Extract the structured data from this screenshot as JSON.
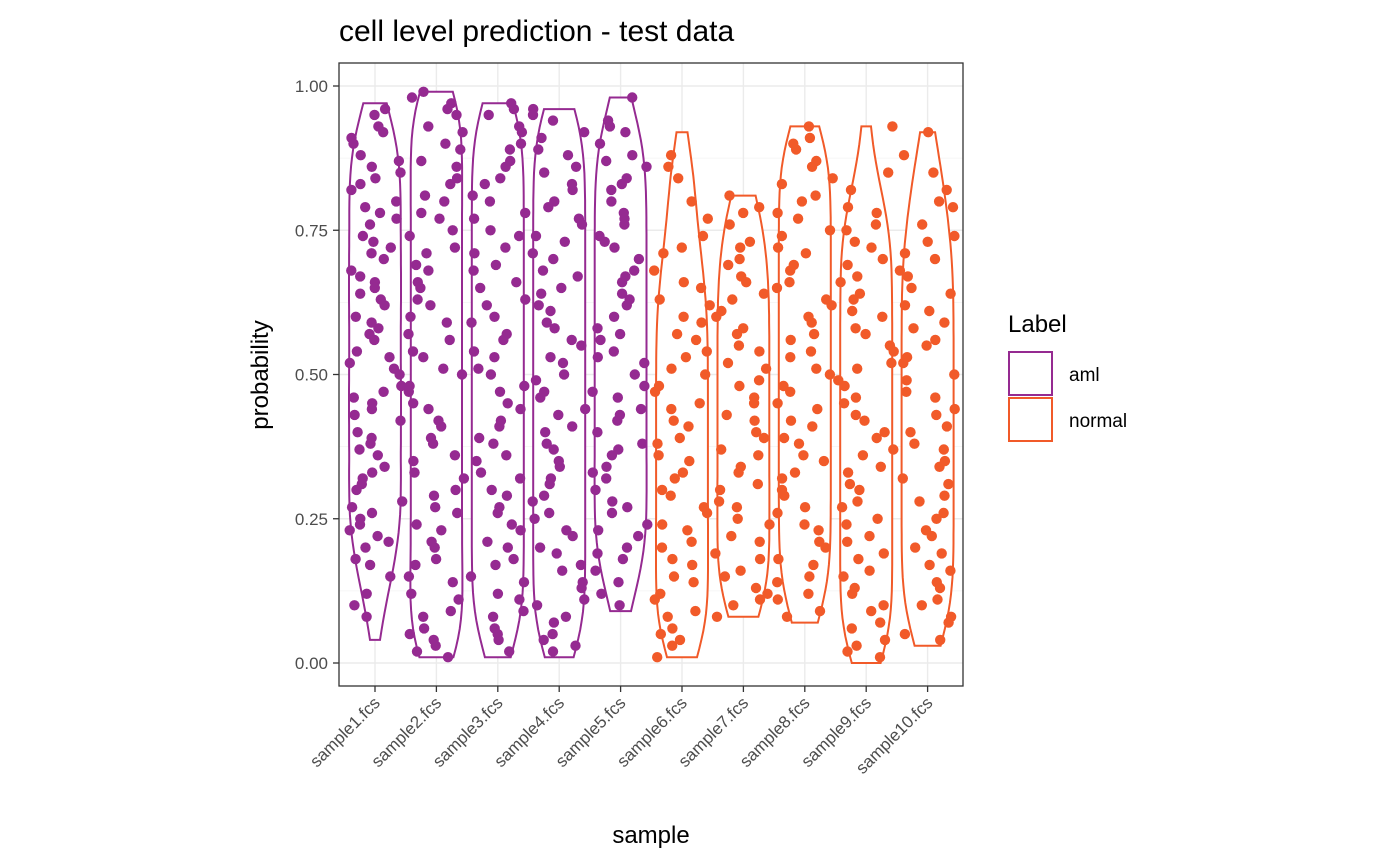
{
  "chart_data": {
    "type": "violin",
    "title": "cell level prediction - test data",
    "xlabel": "sample",
    "ylabel": "probability",
    "ylim": [
      0,
      1
    ],
    "yticks": [
      "0.00",
      "0.25",
      "0.50",
      "0.75",
      "1.00"
    ],
    "ytick_values": [
      0,
      0.25,
      0.5,
      0.75,
      1.0
    ],
    "grid": true,
    "legend": {
      "title": "Label",
      "placement": "right",
      "entries": [
        {
          "label": "aml",
          "color": "#952a91"
        },
        {
          "label": "normal",
          "color": "#f15a29"
        }
      ]
    },
    "categories": [
      "sample1.fcs",
      "sample2.fcs",
      "sample3.fcs",
      "sample4.fcs",
      "sample5.fcs",
      "sample6.fcs",
      "sample7.fcs",
      "sample8.fcs",
      "sample9.fcs",
      "sample10.fcs"
    ],
    "samples": [
      {
        "name": "sample1.fcs",
        "label": "aml",
        "min": 0.04,
        "max": 0.97,
        "points": [
          0.95,
          0.93,
          0.9,
          0.88,
          0.86,
          0.84,
          0.82,
          0.8,
          0.78,
          0.76,
          0.74,
          0.72,
          0.7,
          0.68,
          0.66,
          0.64,
          0.62,
          0.6,
          0.58,
          0.56,
          0.54,
          0.52,
          0.5,
          0.48,
          0.46,
          0.44,
          0.42,
          0.4,
          0.38,
          0.36,
          0.34,
          0.32,
          0.3,
          0.28,
          0.26,
          0.24,
          0.22,
          0.2,
          0.18,
          0.15,
          0.12,
          0.08,
          0.91,
          0.87,
          0.83,
          0.77,
          0.73,
          0.67,
          0.63,
          0.57,
          0.53,
          0.47,
          0.43,
          0.37,
          0.33,
          0.27,
          0.23,
          0.17,
          0.96,
          0.92,
          0.85,
          0.79,
          0.71,
          0.65,
          0.59,
          0.51,
          0.45,
          0.39,
          0.31,
          0.25,
          0.21,
          0.1
        ]
      },
      {
        "name": "sample2.fcs",
        "label": "aml",
        "min": 0.01,
        "max": 0.99,
        "points": [
          0.99,
          0.97,
          0.95,
          0.92,
          0.89,
          0.86,
          0.83,
          0.8,
          0.77,
          0.74,
          0.71,
          0.68,
          0.65,
          0.62,
          0.59,
          0.56,
          0.53,
          0.5,
          0.47,
          0.44,
          0.41,
          0.38,
          0.35,
          0.32,
          0.29,
          0.26,
          0.23,
          0.2,
          0.17,
          0.14,
          0.11,
          0.08,
          0.05,
          0.02,
          0.01,
          0.96,
          0.9,
          0.84,
          0.78,
          0.72,
          0.66,
          0.6,
          0.54,
          0.48,
          0.42,
          0.36,
          0.3,
          0.24,
          0.18,
          0.12,
          0.06,
          0.03,
          0.98,
          0.93,
          0.87,
          0.81,
          0.75,
          0.69,
          0.63,
          0.57,
          0.51,
          0.45,
          0.39,
          0.33,
          0.27,
          0.21,
          0.15,
          0.09,
          0.04
        ]
      },
      {
        "name": "sample3.fcs",
        "label": "aml",
        "min": 0.01,
        "max": 0.97,
        "points": [
          0.97,
          0.95,
          0.92,
          0.89,
          0.86,
          0.83,
          0.8,
          0.77,
          0.74,
          0.71,
          0.68,
          0.65,
          0.62,
          0.59,
          0.56,
          0.53,
          0.5,
          0.47,
          0.44,
          0.41,
          0.38,
          0.35,
          0.32,
          0.29,
          0.26,
          0.23,
          0.2,
          0.17,
          0.14,
          0.11,
          0.08,
          0.05,
          0.02,
          0.96,
          0.9,
          0.84,
          0.78,
          0.72,
          0.66,
          0.6,
          0.54,
          0.48,
          0.42,
          0.36,
          0.3,
          0.24,
          0.18,
          0.12,
          0.06,
          0.93,
          0.87,
          0.81,
          0.75,
          0.69,
          0.63,
          0.57,
          0.51,
          0.45,
          0.39,
          0.33,
          0.27,
          0.21,
          0.15,
          0.09,
          0.04
        ]
      },
      {
        "name": "sample4.fcs",
        "label": "aml",
        "min": 0.01,
        "max": 0.96,
        "points": [
          0.96,
          0.94,
          0.91,
          0.88,
          0.85,
          0.82,
          0.79,
          0.76,
          0.73,
          0.7,
          0.67,
          0.64,
          0.61,
          0.58,
          0.55,
          0.52,
          0.49,
          0.46,
          0.43,
          0.4,
          0.37,
          0.34,
          0.31,
          0.28,
          0.25,
          0.22,
          0.19,
          0.16,
          0.13,
          0.1,
          0.07,
          0.04,
          0.02,
          0.95,
          0.89,
          0.83,
          0.77,
          0.71,
          0.65,
          0.59,
          0.53,
          0.47,
          0.41,
          0.35,
          0.29,
          0.23,
          0.17,
          0.11,
          0.05,
          0.92,
          0.86,
          0.8,
          0.74,
          0.68,
          0.62,
          0.56,
          0.5,
          0.44,
          0.38,
          0.32,
          0.26,
          0.2,
          0.14,
          0.08,
          0.03
        ]
      },
      {
        "name": "sample5.fcs",
        "label": "aml",
        "min": 0.09,
        "max": 0.98,
        "points": [
          0.98,
          0.94,
          0.92,
          0.9,
          0.88,
          0.86,
          0.84,
          0.82,
          0.8,
          0.78,
          0.76,
          0.74,
          0.72,
          0.7,
          0.68,
          0.66,
          0.64,
          0.62,
          0.6,
          0.58,
          0.56,
          0.54,
          0.52,
          0.5,
          0.48,
          0.46,
          0.44,
          0.42,
          0.4,
          0.38,
          0.36,
          0.34,
          0.32,
          0.3,
          0.28,
          0.26,
          0.24,
          0.22,
          0.2,
          0.18,
          0.16,
          0.14,
          0.12,
          0.1,
          0.93,
          0.87,
          0.83,
          0.77,
          0.73,
          0.67,
          0.63,
          0.57,
          0.53,
          0.47,
          0.43,
          0.37,
          0.33,
          0.27,
          0.23,
          0.19
        ]
      },
      {
        "name": "sample6.fcs",
        "label": "normal",
        "min": 0.01,
        "max": 0.92,
        "points": [
          0.88,
          0.84,
          0.8,
          0.77,
          0.74,
          0.71,
          0.68,
          0.65,
          0.62,
          0.59,
          0.56,
          0.53,
          0.5,
          0.47,
          0.44,
          0.41,
          0.38,
          0.35,
          0.32,
          0.29,
          0.26,
          0.23,
          0.2,
          0.17,
          0.14,
          0.11,
          0.08,
          0.05,
          0.03,
          0.01,
          0.86,
          0.72,
          0.66,
          0.6,
          0.54,
          0.48,
          0.42,
          0.36,
          0.3,
          0.24,
          0.18,
          0.12,
          0.06,
          0.63,
          0.57,
          0.51,
          0.45,
          0.39,
          0.33,
          0.27,
          0.21,
          0.15,
          0.09,
          0.04
        ]
      },
      {
        "name": "sample7.fcs",
        "label": "normal",
        "min": 0.08,
        "max": 0.81,
        "points": [
          0.81,
          0.79,
          0.76,
          0.73,
          0.7,
          0.67,
          0.64,
          0.61,
          0.58,
          0.55,
          0.52,
          0.49,
          0.46,
          0.43,
          0.4,
          0.37,
          0.34,
          0.31,
          0.28,
          0.25,
          0.22,
          0.19,
          0.16,
          0.13,
          0.1,
          0.08,
          0.78,
          0.72,
          0.66,
          0.6,
          0.54,
          0.48,
          0.42,
          0.36,
          0.3,
          0.24,
          0.18,
          0.12,
          0.69,
          0.63,
          0.57,
          0.51,
          0.45,
          0.39,
          0.33,
          0.27,
          0.21,
          0.15,
          0.11
        ]
      },
      {
        "name": "sample8.fcs",
        "label": "normal",
        "min": 0.07,
        "max": 0.93,
        "points": [
          0.93,
          0.91,
          0.89,
          0.86,
          0.83,
          0.8,
          0.77,
          0.74,
          0.71,
          0.68,
          0.65,
          0.62,
          0.59,
          0.56,
          0.53,
          0.5,
          0.47,
          0.44,
          0.41,
          0.38,
          0.35,
          0.32,
          0.29,
          0.26,
          0.23,
          0.2,
          0.17,
          0.14,
          0.11,
          0.08,
          0.9,
          0.84,
          0.78,
          0.72,
          0.66,
          0.6,
          0.54,
          0.48,
          0.42,
          0.36,
          0.3,
          0.24,
          0.18,
          0.12,
          0.87,
          0.81,
          0.75,
          0.69,
          0.63,
          0.57,
          0.51,
          0.45,
          0.39,
          0.33,
          0.27,
          0.21,
          0.15,
          0.09
        ]
      },
      {
        "name": "sample9.fcs",
        "label": "normal",
        "min": 0.0,
        "max": 0.93,
        "points": [
          0.93,
          0.85,
          0.82,
          0.79,
          0.76,
          0.73,
          0.7,
          0.67,
          0.64,
          0.61,
          0.58,
          0.55,
          0.52,
          0.49,
          0.46,
          0.43,
          0.4,
          0.37,
          0.34,
          0.31,
          0.28,
          0.25,
          0.22,
          0.19,
          0.16,
          0.13,
          0.1,
          0.07,
          0.04,
          0.01,
          0.78,
          0.72,
          0.66,
          0.6,
          0.54,
          0.48,
          0.42,
          0.36,
          0.3,
          0.24,
          0.18,
          0.12,
          0.06,
          0.02,
          0.75,
          0.69,
          0.63,
          0.57,
          0.51,
          0.45,
          0.39,
          0.33,
          0.27,
          0.21,
          0.15,
          0.09,
          0.03
        ]
      },
      {
        "name": "sample10.fcs",
        "label": "normal",
        "min": 0.03,
        "max": 0.92,
        "points": [
          0.92,
          0.88,
          0.85,
          0.82,
          0.79,
          0.76,
          0.73,
          0.7,
          0.67,
          0.64,
          0.61,
          0.58,
          0.55,
          0.52,
          0.49,
          0.46,
          0.43,
          0.4,
          0.37,
          0.34,
          0.31,
          0.28,
          0.25,
          0.22,
          0.19,
          0.16,
          0.13,
          0.1,
          0.07,
          0.04,
          0.8,
          0.74,
          0.68,
          0.62,
          0.56,
          0.5,
          0.44,
          0.38,
          0.32,
          0.26,
          0.2,
          0.14,
          0.08,
          0.71,
          0.65,
          0.59,
          0.53,
          0.47,
          0.41,
          0.35,
          0.29,
          0.23,
          0.17,
          0.11,
          0.05
        ]
      }
    ]
  }
}
